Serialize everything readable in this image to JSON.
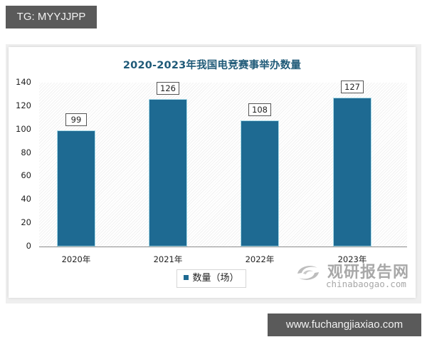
{
  "badges": {
    "top_left": "TG: MYYJJPP",
    "bottom_right": "www.fuchangjiaxiao.com"
  },
  "watermark": {
    "name_cn": "观研报告网",
    "url": "chinabaogao.com",
    "icon": "swirl-logo-icon"
  },
  "legend": {
    "label": "数量（场）",
    "color": "#1e6a92"
  },
  "y_ticks": [
    "0",
    "20",
    "40",
    "60",
    "80",
    "100",
    "120",
    "140"
  ],
  "bars": [
    {
      "label": "2020年",
      "value": "99"
    },
    {
      "label": "2021年",
      "value": "126"
    },
    {
      "label": "2022年",
      "value": "108"
    },
    {
      "label": "2023年",
      "value": "127"
    }
  ],
  "chart_data": {
    "type": "bar",
    "title": "2020-2023年我国电竞赛事举办数量",
    "categories": [
      "2020年",
      "2021年",
      "2022年",
      "2023年"
    ],
    "series": [
      {
        "name": "数量（场）",
        "values": [
          99,
          126,
          108,
          127
        ],
        "color": "#1e6a92"
      }
    ],
    "xlabel": "",
    "ylabel": "",
    "ylim": [
      0,
      140
    ],
    "yticks": [
      0,
      20,
      40,
      60,
      80,
      100,
      120,
      140
    ],
    "grid": false,
    "data_labels": true,
    "legend_position": "bottom",
    "background": "diagonal-hatch"
  }
}
